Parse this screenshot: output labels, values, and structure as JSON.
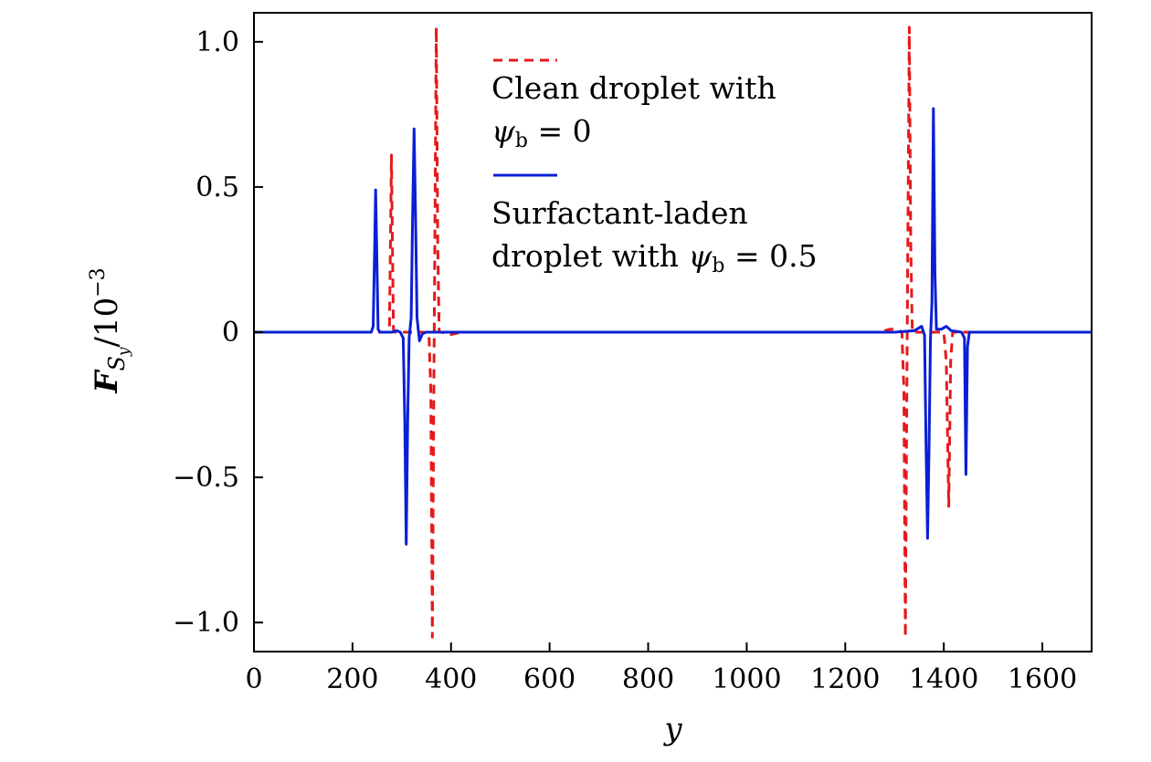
{
  "chart_data": {
    "type": "line",
    "xlabel": "y",
    "ylabel": {
      "base": "F",
      "subscript_main": "S",
      "subscript_sub": "y",
      "unit": "/10",
      "exponent": "−3"
    },
    "xlim": [
      0,
      1700
    ],
    "ylim": [
      -1.1,
      1.1
    ],
    "x_ticks": [
      {
        "value": 0,
        "label": "0"
      },
      {
        "value": 200,
        "label": "200"
      },
      {
        "value": 400,
        "label": "400"
      },
      {
        "value": 600,
        "label": "600"
      },
      {
        "value": 800,
        "label": "800"
      },
      {
        "value": 1000,
        "label": "1000"
      },
      {
        "value": 1200,
        "label": "1200"
      },
      {
        "value": 1400,
        "label": "1400"
      },
      {
        "value": 1600,
        "label": "1600"
      }
    ],
    "y_ticks": [
      {
        "value": 1.0,
        "label": "1.0"
      },
      {
        "value": 0.5,
        "label": "0.5"
      },
      {
        "value": 0,
        "label": "0"
      },
      {
        "value": -0.5,
        "label": "−0.5"
      },
      {
        "value": -1.0,
        "label": "−1.0"
      }
    ],
    "grid": false,
    "legend_position": "top-center",
    "series": [
      {
        "name": "Clean droplet with ψb = 0",
        "legend_lines": [
          "Clean droplet with",
          "ψ_b = 0"
        ],
        "color": "#e41a1c",
        "dash": "dashed",
        "points": [
          [
            0,
            0
          ],
          [
            270,
            0
          ],
          [
            275,
            0.01
          ],
          [
            277,
            0.3
          ],
          [
            279,
            0.61
          ],
          [
            281,
            0.3
          ],
          [
            283,
            0.01
          ],
          [
            286,
            0
          ],
          [
            355,
            0
          ],
          [
            359,
            -0.2
          ],
          [
            362,
            -1.05
          ],
          [
            365,
            -0.2
          ],
          [
            367,
            0.3
          ],
          [
            370,
            1.05
          ],
          [
            373,
            0.3
          ],
          [
            376,
            0
          ],
          [
            380,
            0
          ],
          [
            400,
            -0.008
          ],
          [
            420,
            0
          ],
          [
            1270,
            0
          ],
          [
            1290,
            0.01
          ],
          [
            1305,
            0.01
          ],
          [
            1315,
            0
          ],
          [
            1319,
            -0.2
          ],
          [
            1322,
            -1.05
          ],
          [
            1325,
            -0.2
          ],
          [
            1327,
            0.3
          ],
          [
            1330,
            1.05
          ],
          [
            1333,
            0.3
          ],
          [
            1336,
            0
          ],
          [
            1400,
            0
          ],
          [
            1405,
            -0.1
          ],
          [
            1410,
            -0.6
          ],
          [
            1414,
            -0.1
          ],
          [
            1418,
            0
          ],
          [
            1700,
            0
          ]
        ]
      },
      {
        "name": "Surfactant-laden droplet with ψb = 0.5",
        "legend_lines": [
          "Surfactant-laden",
          "droplet with ψ_b = 0.5"
        ],
        "color": "#0a1fd4",
        "dash": "solid",
        "points": [
          [
            0,
            0
          ],
          [
            238,
            0
          ],
          [
            242,
            0.02
          ],
          [
            245,
            0.3
          ],
          [
            247,
            0.49
          ],
          [
            249,
            0.3
          ],
          [
            252,
            0.01
          ],
          [
            256,
            0
          ],
          [
            280,
            0
          ],
          [
            290,
            0.005
          ],
          [
            297,
            0
          ],
          [
            303,
            -0.02
          ],
          [
            306,
            -0.3
          ],
          [
            309,
            -0.73
          ],
          [
            312,
            -0.3
          ],
          [
            315,
            -0.02
          ],
          [
            319,
            0.05
          ],
          [
            322,
            0.4
          ],
          [
            325,
            0.7
          ],
          [
            328,
            0.4
          ],
          [
            331,
            0.05
          ],
          [
            336,
            -0.03
          ],
          [
            342,
            -0.005
          ],
          [
            350,
            0
          ],
          [
            400,
            0
          ],
          [
            1300,
            0
          ],
          [
            1340,
            0.005
          ],
          [
            1355,
            0.02
          ],
          [
            1361,
            -0.01
          ],
          [
            1364,
            -0.4
          ],
          [
            1367,
            -0.71
          ],
          [
            1370,
            -0.4
          ],
          [
            1373,
            -0.02
          ],
          [
            1376,
            0.1
          ],
          [
            1379,
            0.77
          ],
          [
            1382,
            0.2
          ],
          [
            1385,
            0.01
          ],
          [
            1395,
            0.01
          ],
          [
            1405,
            0.02
          ],
          [
            1415,
            0.005
          ],
          [
            1436,
            0
          ],
          [
            1442,
            -0.02
          ],
          [
            1445,
            -0.49
          ],
          [
            1448,
            -0.05
          ],
          [
            1452,
            0
          ],
          [
            1700,
            0
          ]
        ]
      }
    ]
  }
}
